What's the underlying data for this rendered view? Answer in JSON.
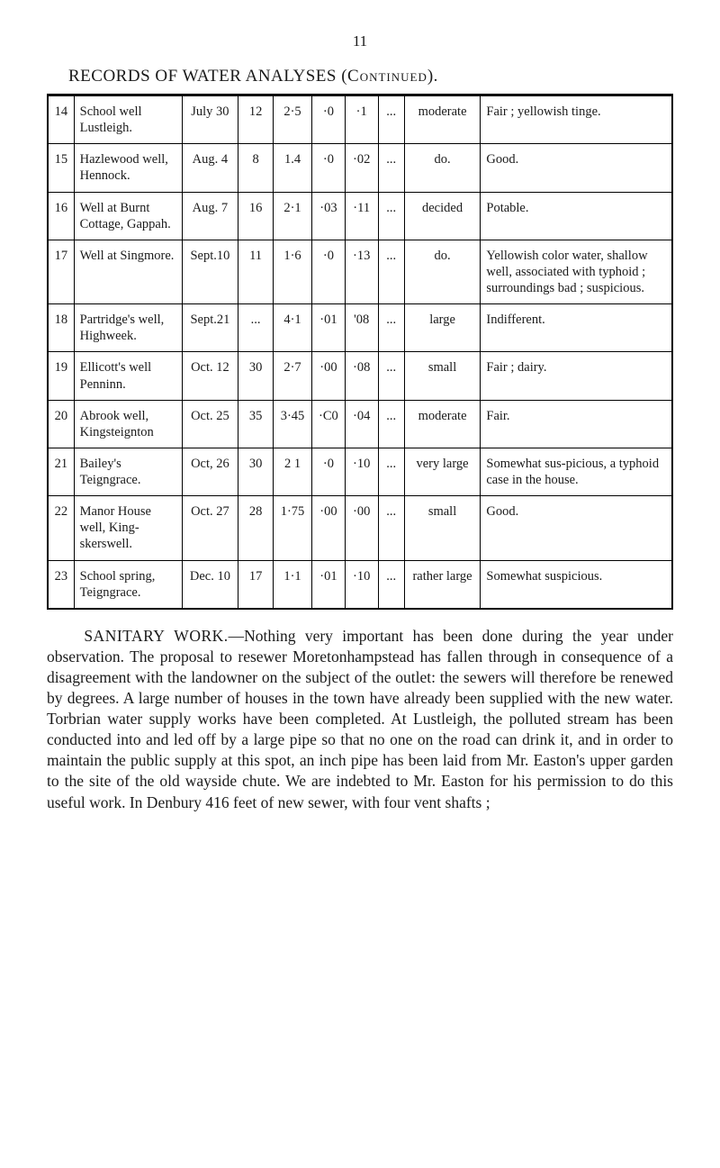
{
  "page_number": "11",
  "title_main": "RECORDS OF WATER ANALYSES",
  "title_paren_open": "(",
  "title_cont": "Continued",
  "title_paren_close": ").",
  "rows": [
    {
      "num": "14",
      "source": "School well Lustleigh.",
      "date": "July 30",
      "c1": "12",
      "c2": "2·5",
      "c3": "·0",
      "c4": "·1",
      "c5": "...",
      "result": "moderate",
      "remarks": "Fair ; yellowish tinge."
    },
    {
      "num": "15",
      "source": "Hazlewood well, Hennock.",
      "date": "Aug. 4",
      "c1": "8",
      "c2": "1.4",
      "c3": "·0",
      "c4": "·02",
      "c5": "...",
      "result": "do.",
      "remarks": "Good."
    },
    {
      "num": "16",
      "source": "Well at Burnt Cottage, Gappah.",
      "date": "Aug. 7",
      "c1": "16",
      "c2": "2·1",
      "c3": "·03",
      "c4": "·11",
      "c5": "...",
      "result": "decided",
      "remarks": "Potable."
    },
    {
      "num": "17",
      "source": "Well at Singmore.",
      "date": "Sept.10",
      "c1": "11",
      "c2": "1·6",
      "c3": "·0",
      "c4": "·13",
      "c5": "...",
      "result": "do.",
      "remarks": "Yellowish color water, shallow well, associated with typhoid ; surroundings bad ; suspicious."
    },
    {
      "num": "18",
      "source": "Partridge's well, Highweek.",
      "date": "Sept.21",
      "c1": "...",
      "c2": "4·1",
      "c3": "·01",
      "c4": "'08",
      "c5": "...",
      "result": "large",
      "remarks": "Indifferent."
    },
    {
      "num": "19",
      "source": "Ellicott's well Penninn.",
      "date": "Oct. 12",
      "c1": "30",
      "c2": "2·7",
      "c3": "·00",
      "c4": "·08",
      "c5": "...",
      "result": "small",
      "remarks": "Fair ; dairy."
    },
    {
      "num": "20",
      "source": "Abrook well, Kingsteignton",
      "date": "Oct. 25",
      "c1": "35",
      "c2": "3·45",
      "c3": "·C0",
      "c4": "·04",
      "c5": "...",
      "result": "moderate",
      "remarks": "Fair."
    },
    {
      "num": "21",
      "source": "Bailey's Teigngrace.",
      "date": "Oct, 26",
      "c1": "30",
      "c2": "2 1",
      "c3": "·0",
      "c4": "·10",
      "c5": "...",
      "result": "very large",
      "remarks": "Somewhat sus-picious, a typhoid case in the house."
    },
    {
      "num": "22",
      "source": "Manor House well, King-skerswell.",
      "date": "Oct. 27",
      "c1": "28",
      "c2": "1·75",
      "c3": "·00",
      "c4": "·00",
      "c5": "...",
      "result": "small",
      "remarks": "Good."
    },
    {
      "num": "23",
      "source": "School spring, Teigngrace.",
      "date": "Dec. 10",
      "c1": "17",
      "c2": "1·1",
      "c3": "·01",
      "c4": "·10",
      "c5": "...",
      "result": "rather large",
      "remarks": "Somewhat suspicious."
    }
  ],
  "body_lead": "SANITARY WORK.",
  "body_text": "—Nothing very important has been done during the year under observation. The proposal to resewer Moretonhampstead has fallen through in consequence of a disagreement with the landowner on the subject of the outlet: the sewers will therefore be renewed by degrees. A large number of houses in the town have already been supplied with the new water. Torbrian water supply works have been completed. At Lustleigh, the polluted stream has been conducted into and led off by a large pipe so that no one on the road can drink it, and in order to maintain the public supply at this spot, an inch pipe has been laid from Mr. Easton's upper garden to the site of the old wayside chute. We are indebted to Mr. Easton for his permission to do this useful work. In Denbury 416 feet of new sewer, with four vent shafts ;"
}
